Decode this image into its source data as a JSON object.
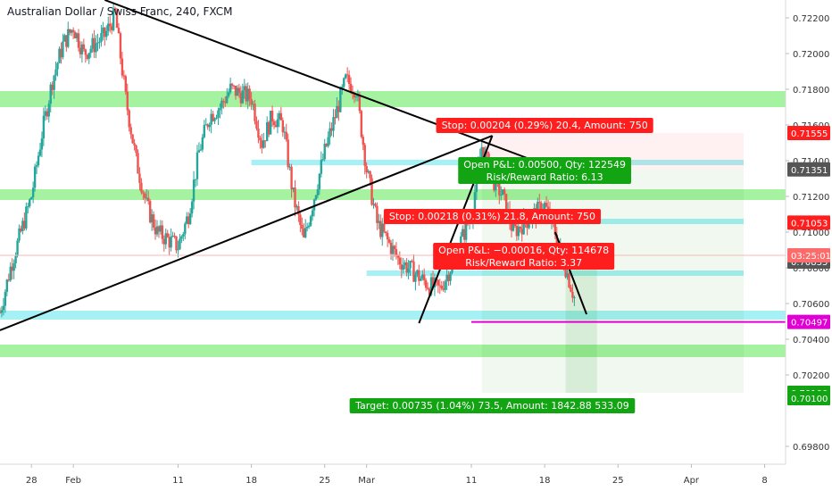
{
  "chart_data": {
    "type": "candlestick",
    "title": "Australian Dollar / Swiss Franc, 240, FXCM",
    "xlabel": "",
    "ylabel": "",
    "grid": false,
    "ylim": [
      0.697,
      0.723
    ],
    "xlim": [
      "2019-01-25",
      "2019-04-10"
    ],
    "y_ticks": [
      "0.72200",
      "0.72000",
      "0.71800",
      "0.71600",
      "0.71400",
      "0.71200",
      "0.71000",
      "0.70800",
      "0.70600",
      "0.70400",
      "0.70200",
      "0.69800"
    ],
    "x_ticks": [
      {
        "label": "28",
        "date": "2019-01-28"
      },
      {
        "label": "Feb",
        "date": "2019-02-01"
      },
      {
        "label": "11",
        "date": "2019-02-11"
      },
      {
        "label": "18",
        "date": "2019-02-18"
      },
      {
        "label": "25",
        "date": "2019-02-25"
      },
      {
        "label": "Mar",
        "date": "2019-03-01"
      },
      {
        "label": "11",
        "date": "2019-03-11"
      },
      {
        "label": "18",
        "date": "2019-03-18"
      },
      {
        "label": "25",
        "date": "2019-03-25"
      },
      {
        "label": "Apr",
        "date": "2019-04-01"
      },
      {
        "label": "8",
        "date": "2019-04-08"
      }
    ],
    "close_path": [
      [
        "2019-01-25",
        0.7055
      ],
      [
        "2019-01-26",
        0.708
      ],
      [
        "2019-01-28",
        0.712
      ],
      [
        "2019-01-29",
        0.7155
      ],
      [
        "2019-01-30",
        0.7185
      ],
      [
        "2019-01-31",
        0.7205
      ],
      [
        "2019-02-01",
        0.7215
      ],
      [
        "2019-02-02",
        0.72
      ],
      [
        "2019-02-04",
        0.721
      ],
      [
        "2019-02-05",
        0.7222
      ],
      [
        "2019-02-06",
        0.7175
      ],
      [
        "2019-02-07",
        0.714
      ],
      [
        "2019-02-08",
        0.7115
      ],
      [
        "2019-02-09",
        0.71
      ],
      [
        "2019-02-11",
        0.7092
      ],
      [
        "2019-02-12",
        0.711
      ],
      [
        "2019-02-13",
        0.7145
      ],
      [
        "2019-02-14",
        0.7165
      ],
      [
        "2019-02-15",
        0.717
      ],
      [
        "2019-02-16",
        0.718
      ],
      [
        "2019-02-18",
        0.7175
      ],
      [
        "2019-02-19",
        0.715
      ],
      [
        "2019-02-20",
        0.7165
      ],
      [
        "2019-02-21",
        0.716
      ],
      [
        "2019-02-22",
        0.712
      ],
      [
        "2019-02-23",
        0.7095
      ],
      [
        "2019-02-25",
        0.7145
      ],
      [
        "2019-02-26",
        0.7165
      ],
      [
        "2019-02-27",
        0.7185
      ],
      [
        "2019-02-28",
        0.718
      ],
      [
        "2019-03-01",
        0.7135
      ],
      [
        "2019-03-02",
        0.7105
      ],
      [
        "2019-03-04",
        0.7085
      ],
      [
        "2019-03-05",
        0.708
      ],
      [
        "2019-03-06",
        0.7075
      ],
      [
        "2019-03-07",
        0.707
      ],
      [
        "2019-03-08",
        0.7068
      ],
      [
        "2019-03-09",
        0.708
      ],
      [
        "2019-03-11",
        0.711
      ],
      [
        "2019-03-12",
        0.7148
      ],
      [
        "2019-03-13",
        0.713
      ],
      [
        "2019-03-14",
        0.712
      ],
      [
        "2019-03-15",
        0.71
      ],
      [
        "2019-03-16",
        0.7105
      ],
      [
        "2019-03-18",
        0.7115
      ],
      [
        "2019-03-19",
        0.71
      ],
      [
        "2019-03-20",
        0.708
      ],
      [
        "2019-03-21",
        0.706
      ]
    ],
    "bands": [
      {
        "low": 0.717,
        "high": 0.7179,
        "color": "#a5f3a0"
      },
      {
        "low": 0.7118,
        "high": 0.7124,
        "color": "#a5f3a0"
      },
      {
        "low": 0.703,
        "high": 0.7037,
        "color": "#a5f3a0"
      },
      {
        "low": 0.7051,
        "high": 0.7056,
        "color": "#a6f1f5"
      }
    ],
    "short_lines": [
      {
        "from": "2019-02-18",
        "to": "2019-04-06",
        "price": 0.7139,
        "color": "#a6f1f5"
      },
      {
        "from": "2019-03-20",
        "to": "2019-04-06",
        "price": 0.7106,
        "color": "#a6f1f5"
      },
      {
        "from": "2019-03-01",
        "to": "2019-04-06",
        "price": 0.7077,
        "color": "#a6f1f5"
      }
    ],
    "trendlines": [
      {
        "from": [
          "2019-01-25",
          0.7045
        ],
        "to": [
          "2019-03-13",
          0.7154
        ]
      },
      {
        "from": [
          "2019-02-04",
          0.723
        ],
        "to": [
          "2019-03-17",
          0.714
        ]
      },
      {
        "from": [
          "2019-03-06",
          0.7049
        ],
        "to": [
          "2019-03-13",
          0.7154
        ]
      },
      {
        "from": [
          "2019-03-19",
          0.71
        ],
        "to": [
          "2019-03-22",
          0.7054
        ]
      }
    ],
    "current_price": {
      "value": "03:25:01",
      "price": 0.7087
    },
    "marker_line": {
      "from": "2019-03-11",
      "to": "2019-04-10",
      "price": 0.70497,
      "color": "#e100d4"
    },
    "position_zones": [
      {
        "from": "2019-03-12",
        "to": "2019-04-06",
        "top": 0.71555,
        "bottom": 0.71351,
        "color": "rgba(255,82,82,0.08)"
      },
      {
        "from": "2019-03-12",
        "to": "2019-04-06",
        "top": 0.71351,
        "bottom": 0.701,
        "color": "rgba(39,162,39,0.07)"
      },
      {
        "from": "2019-03-20",
        "to": "2019-03-23",
        "top": 0.70835,
        "bottom": 0.701,
        "color": "rgba(39,162,39,0.12)"
      }
    ],
    "labels": [
      {
        "text": "Stop: 0.00204 (0.29%) 20.4, Amount: 750",
        "color": "#ff1e1e",
        "date": "2019-03-18",
        "price": 0.716
      },
      {
        "text": "Open P&L: 0.00500, Qty: 122549",
        "text2": "Risk/Reward Ratio: 6.13",
        "color": "#12a412",
        "date": "2019-03-18",
        "price": 0.7135
      },
      {
        "text": "Stop: 0.00218 (0.31%) 21.8, Amount: 750",
        "color": "#ff1e1e",
        "date": "2019-03-13",
        "price": 0.7109
      },
      {
        "text": "Open P&L: −0.00016, Qty: 114678",
        "text2": "Risk/Reward Ratio: 3.37",
        "color": "#ff1e1e",
        "date": "2019-03-16",
        "price": 0.7087
      },
      {
        "text": "Target: 0.00735 (1.04%) 73.5, Amount: 1842.88 533.09",
        "color": "#12a412",
        "date": "2019-03-13",
        "price": 0.7003
      }
    ],
    "price_badges": [
      {
        "text": "0.71555",
        "price": 0.71555,
        "color": "#ff1e1e"
      },
      {
        "text": "0.71351",
        "price": 0.71351,
        "color": "#555555"
      },
      {
        "text": "0.71053",
        "price": 0.71053,
        "color": "#ff1e1e"
      },
      {
        "text": "0.70835",
        "price": 0.70835,
        "color": "#555555"
      },
      {
        "text": "0.70497",
        "price": 0.70497,
        "color": "#e100d4"
      },
      {
        "text": "0.70100",
        "price": 0.701,
        "color": "#12a412"
      },
      {
        "text": "0.70100",
        "price": 0.7007,
        "color": "#12a412"
      }
    ]
  }
}
